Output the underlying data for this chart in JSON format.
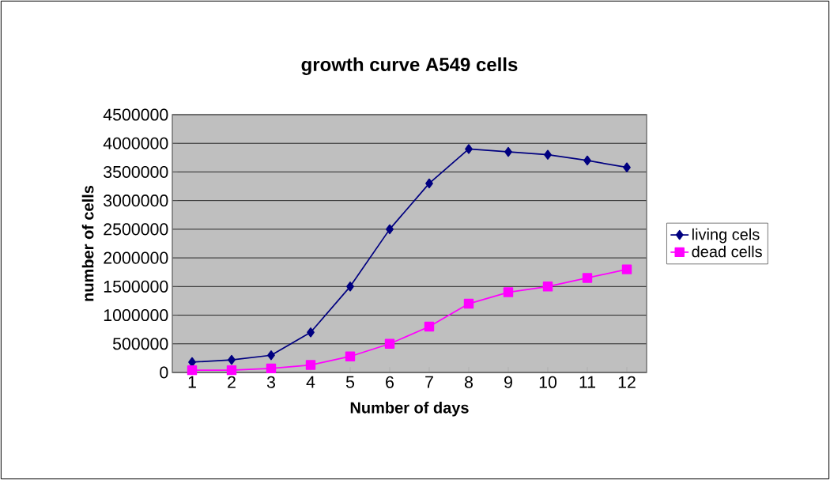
{
  "chart_data": {
    "type": "line",
    "title": "growth curve A549 cells",
    "xlabel": "Number of days",
    "ylabel": "number of cells",
    "categories": [
      "1",
      "2",
      "3",
      "4",
      "5",
      "6",
      "7",
      "8",
      "9",
      "10",
      "11",
      "12"
    ],
    "series": [
      {
        "name": "living cels",
        "color": "#000080",
        "marker": "diamond",
        "values": [
          180000,
          220000,
          300000,
          700000,
          1500000,
          2500000,
          3300000,
          3900000,
          3850000,
          3800000,
          3700000,
          3580000
        ]
      },
      {
        "name": "dead cells",
        "color": "#ff00ff",
        "marker": "square",
        "values": [
          40000,
          40000,
          70000,
          130000,
          280000,
          500000,
          800000,
          1200000,
          1400000,
          1500000,
          1650000,
          1800000
        ]
      }
    ],
    "ylim": [
      0,
      4500000
    ],
    "yticks": [
      0,
      500000,
      1000000,
      1500000,
      2000000,
      2500000,
      3000000,
      3500000,
      4000000,
      4500000
    ],
    "grid": "y",
    "legend": "right",
    "line_style": "solid"
  }
}
